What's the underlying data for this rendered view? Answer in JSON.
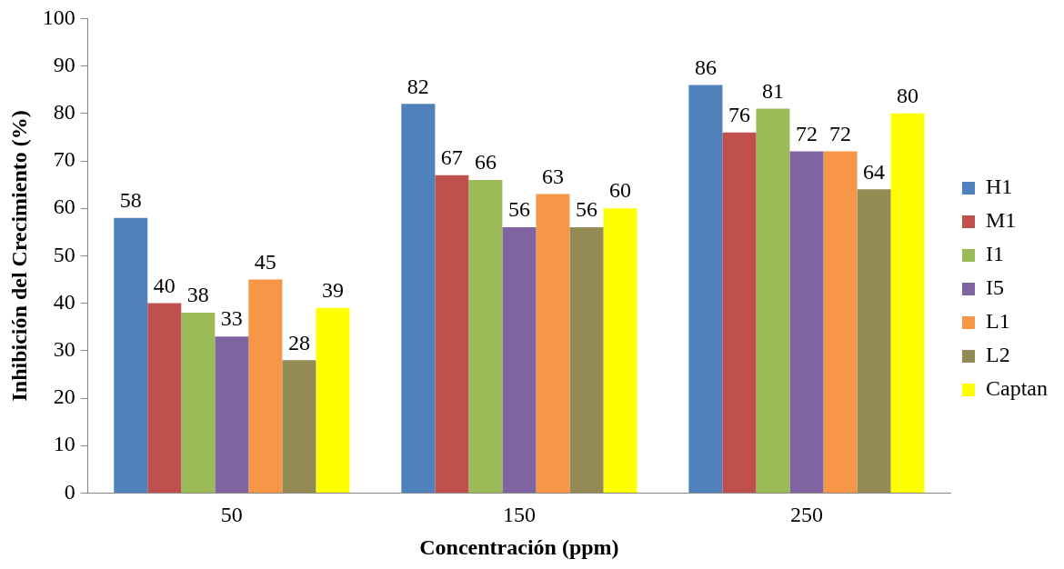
{
  "chart_data": {
    "type": "bar",
    "xlabel": "Concentración (ppm)",
    "ylabel": "Inhibición del Crecimiento (%)",
    "categories": [
      "50",
      "150",
      "250"
    ],
    "series": [
      {
        "name": "H1",
        "color": "#4f81bd",
        "values": [
          58,
          82,
          86
        ]
      },
      {
        "name": "M1",
        "color": "#c0504d",
        "values": [
          40,
          67,
          76
        ]
      },
      {
        "name": "I1",
        "color": "#9bbb59",
        "values": [
          38,
          66,
          81
        ]
      },
      {
        "name": "I5",
        "color": "#8064a2",
        "values": [
          33,
          56,
          72
        ]
      },
      {
        "name": "L1",
        "color": "#f79646",
        "values": [
          45,
          63,
          72
        ]
      },
      {
        "name": "L2",
        "color": "#948a54",
        "values": [
          28,
          56,
          64
        ]
      },
      {
        "name": "Captan",
        "color": "#ffff00",
        "values": [
          39,
          60,
          80
        ]
      }
    ],
    "ylim": [
      0,
      100
    ],
    "yticks": [
      0,
      10,
      20,
      30,
      40,
      50,
      60,
      70,
      80,
      90,
      100
    ],
    "grid": false,
    "legend": "right",
    "data_labels": true
  }
}
